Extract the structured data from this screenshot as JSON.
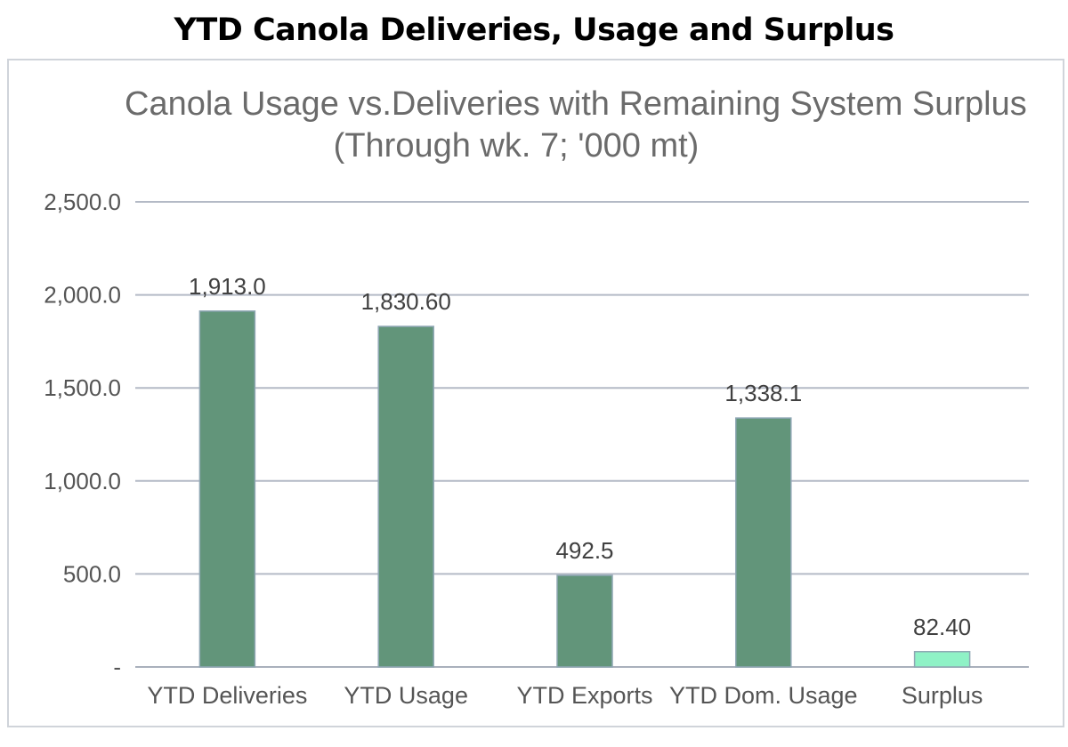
{
  "page": {
    "title": "YTD Canola Deliveries, Usage and Surplus"
  },
  "chart_data": {
    "type": "bar",
    "title": "Canola Usage vs.Deliveries with Remaining System Surplus",
    "subtitle": "(Through wk. 7; '000 mt)",
    "categories": [
      "YTD Deliveries",
      "YTD Usage",
      "YTD Exports",
      "YTD Dom. Usage",
      "Surplus"
    ],
    "values": [
      1913.0,
      1830.6,
      492.5,
      1338.1,
      82.4
    ],
    "data_labels": [
      "1,913.0",
      "1,830.60",
      "492.5",
      "1,338.1",
      "82.40"
    ],
    "bar_colors": [
      "#62957a",
      "#62957a",
      "#62957a",
      "#62957a",
      "#8ff2c6"
    ],
    "ylim": [
      0,
      2500
    ],
    "yticks": [
      0,
      500,
      1000,
      1500,
      2000,
      2500
    ],
    "ytick_labels": [
      "-",
      "500.0",
      "1,000.0",
      "1,500.0",
      "2,000.0",
      "2,500.0"
    ],
    "grid": true,
    "legend": "none"
  }
}
